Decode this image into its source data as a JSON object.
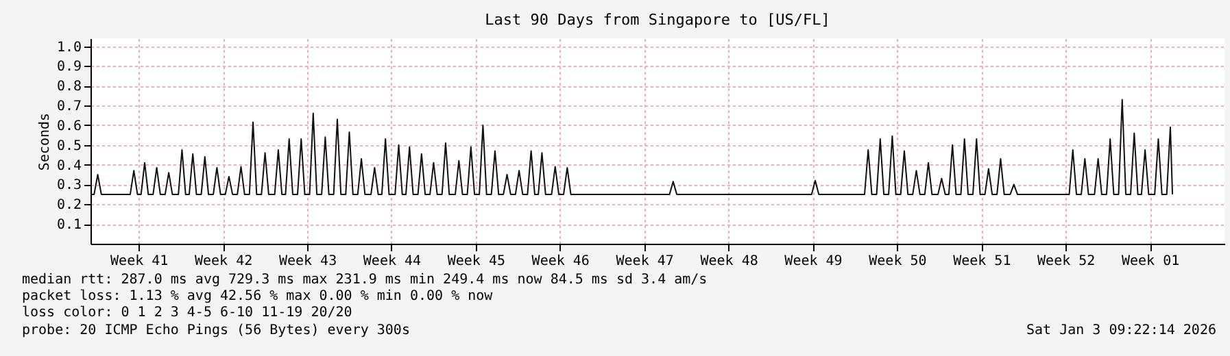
{
  "chart_data": {
    "type": "line",
    "title": "Last 90 Days from Singapore to [US/FL]",
    "ylabel": "Seconds",
    "xlim": [
      "2025-10-05T12:00",
      "2026-01-07T16:48"
    ],
    "ylim": [
      0,
      1.04
    ],
    "xticks": [
      {
        "value": "2025-10-09T12:00",
        "label": "Week 41"
      },
      {
        "value": "2025-10-16T12:00",
        "label": "Week 42"
      },
      {
        "value": "2025-10-23T12:00",
        "label": "Week 43"
      },
      {
        "value": "2025-10-30T12:00",
        "label": "Week 44"
      },
      {
        "value": "2025-11-06T12:00",
        "label": "Week 45"
      },
      {
        "value": "2025-11-13T12:00",
        "label": "Week 46"
      },
      {
        "value": "2025-11-20T12:00",
        "label": "Week 47"
      },
      {
        "value": "2025-11-27T12:00",
        "label": "Week 48"
      },
      {
        "value": "2025-12-04T12:00",
        "label": "Week 49"
      },
      {
        "value": "2025-12-11T12:00",
        "label": "Week 50"
      },
      {
        "value": "2025-12-18T12:00",
        "label": "Week 51"
      },
      {
        "value": "2025-12-25T12:00",
        "label": "Week 52"
      },
      {
        "value": "2026-01-01T12:00",
        "label": "Week 01"
      }
    ],
    "yticks": [
      0.1,
      0.2,
      0.3,
      0.4,
      0.5,
      0.6,
      0.7,
      0.8,
      0.9,
      {
        "value": 1,
        "label": "1.0"
      }
    ],
    "grid": true,
    "marker": "none",
    "line_style": "solid",
    "series": [
      {
        "color": "#111111",
        "x": [
          "2025-10-05T12:00",
          "2025-10-05T19:12",
          "2025-10-06T02:24",
          "2025-10-06T09:36",
          "2025-10-08T19:12",
          "2025-10-09T02:24",
          "2025-10-09T09:36",
          "2025-10-09T16:48",
          "2025-10-10T00:00",
          "2025-10-10T07:12",
          "2025-10-10T16:48",
          "2025-10-11T00:00",
          "2025-10-11T07:12",
          "2025-10-11T16:48",
          "2025-10-12T00:00",
          "2025-10-12T07:12",
          "2025-10-12T19:12",
          "2025-10-13T02:24",
          "2025-10-13T09:36",
          "2025-10-13T16:48",
          "2025-10-14T00:00",
          "2025-10-14T07:12",
          "2025-10-14T16:48",
          "2025-10-15T00:00",
          "2025-10-15T07:12",
          "2025-10-15T16:48",
          "2025-10-16T00:00",
          "2025-10-16T07:12",
          "2025-10-16T16:48",
          "2025-10-17T00:00",
          "2025-10-17T07:12",
          "2025-10-17T16:48",
          "2025-10-18T00:00",
          "2025-10-18T07:12",
          "2025-10-18T16:48",
          "2025-10-19T00:00",
          "2025-10-19T07:12",
          "2025-10-19T16:48",
          "2025-10-20T00:00",
          "2025-10-20T07:12",
          "2025-10-20T19:12",
          "2025-10-21T02:24",
          "2025-10-21T09:36",
          "2025-10-21T16:48",
          "2025-10-22T00:00",
          "2025-10-22T07:12",
          "2025-10-22T16:48",
          "2025-10-23T00:00",
          "2025-10-23T07:12",
          "2025-10-23T16:48",
          "2025-10-24T00:00",
          "2025-10-24T07:12",
          "2025-10-24T16:48",
          "2025-10-25T00:00",
          "2025-10-25T07:12",
          "2025-10-25T16:48",
          "2025-10-26T00:00",
          "2025-10-26T07:12",
          "2025-10-26T16:48",
          "2025-10-27T00:00",
          "2025-10-27T07:12",
          "2025-10-27T16:48",
          "2025-10-28T00:00",
          "2025-10-28T07:12",
          "2025-10-28T19:12",
          "2025-10-29T02:24",
          "2025-10-29T09:36",
          "2025-10-29T16:48",
          "2025-10-30T00:00",
          "2025-10-30T07:12",
          "2025-10-30T19:12",
          "2025-10-31T02:24",
          "2025-10-31T09:36",
          "2025-10-31T16:48",
          "2025-11-01T00:00",
          "2025-11-01T07:12",
          "2025-11-01T16:48",
          "2025-11-02T00:00",
          "2025-11-02T07:12",
          "2025-11-02T16:48",
          "2025-11-03T00:00",
          "2025-11-03T07:12",
          "2025-11-03T16:48",
          "2025-11-04T00:00",
          "2025-11-04T07:12",
          "2025-11-04T19:12",
          "2025-11-05T02:24",
          "2025-11-05T09:36",
          "2025-11-05T19:12",
          "2025-11-06T02:24",
          "2025-11-06T09:36",
          "2025-11-06T19:12",
          "2025-11-07T02:24",
          "2025-11-07T09:36",
          "2025-11-07T19:12",
          "2025-11-08T02:24",
          "2025-11-08T09:36",
          "2025-11-08T19:12",
          "2025-11-09T02:24",
          "2025-11-09T09:36",
          "2025-11-09T19:12",
          "2025-11-10T02:24",
          "2025-11-10T09:36",
          "2025-11-10T19:12",
          "2025-11-11T02:24",
          "2025-11-11T09:36",
          "2025-11-11T16:48",
          "2025-11-12T00:00",
          "2025-11-12T07:12",
          "2025-11-12T19:12",
          "2025-11-13T02:24",
          "2025-11-13T09:36",
          "2025-11-13T19:12",
          "2025-11-14T02:24",
          "2025-11-14T09:36",
          "2025-11-22T14:24",
          "2025-11-22T21:36",
          "2025-11-23T04:48",
          "2025-12-04T09:36",
          "2025-12-04T16:48",
          "2025-12-05T00:00",
          "2025-12-08T19:12",
          "2025-12-09T02:24",
          "2025-12-09T09:36",
          "2025-12-09T19:12",
          "2025-12-10T02:24",
          "2025-12-10T09:36",
          "2025-12-10T19:12",
          "2025-12-11T02:24",
          "2025-12-11T09:36",
          "2025-12-11T19:12",
          "2025-12-12T02:24",
          "2025-12-12T09:36",
          "2025-12-12T19:12",
          "2025-12-13T02:24",
          "2025-12-13T09:36",
          "2025-12-13T19:12",
          "2025-12-14T02:24",
          "2025-12-14T09:36",
          "2025-12-14T21:36",
          "2025-12-15T04:48",
          "2025-12-15T12:00",
          "2025-12-15T19:12",
          "2025-12-16T02:24",
          "2025-12-16T09:36",
          "2025-12-16T19:12",
          "2025-12-17T02:24",
          "2025-12-17T09:36",
          "2025-12-17T19:12",
          "2025-12-18T02:24",
          "2025-12-18T09:36",
          "2025-12-18T19:12",
          "2025-12-19T02:24",
          "2025-12-19T09:36",
          "2025-12-19T19:12",
          "2025-12-20T02:24",
          "2025-12-20T09:36",
          "2025-12-20T21:36",
          "2025-12-21T04:48",
          "2025-12-21T12:00",
          "2025-12-25T19:12",
          "2025-12-26T02:24",
          "2025-12-26T09:36",
          "2025-12-26T19:12",
          "2025-12-27T02:24",
          "2025-12-27T09:36",
          "2025-12-27T21:36",
          "2025-12-28T04:48",
          "2025-12-28T12:00",
          "2025-12-28T21:36",
          "2025-12-29T04:48",
          "2025-12-29T12:00",
          "2025-12-29T21:36",
          "2025-12-30T04:48",
          "2025-12-30T12:00",
          "2025-12-30T21:36",
          "2025-12-31T04:48",
          "2025-12-31T12:00",
          "2025-12-31T19:12",
          "2026-01-01T02:24",
          "2026-01-01T09:36",
          "2026-01-01T21:36",
          "2026-01-02T04:48",
          "2026-01-02T12:00",
          "2026-01-02T21:36",
          "2026-01-03T04:48",
          "2026-01-03T09:00"
        ],
        "values": [
          0.25,
          0.25,
          0.35,
          0.25,
          0.25,
          0.37,
          0.25,
          0.25,
          0.41,
          0.25,
          0.25,
          0.385,
          0.25,
          0.25,
          0.36,
          0.25,
          0.25,
          0.475,
          0.25,
          0.25,
          0.455,
          0.25,
          0.25,
          0.44,
          0.25,
          0.25,
          0.385,
          0.25,
          0.25,
          0.34,
          0.25,
          0.25,
          0.39,
          0.25,
          0.25,
          0.615,
          0.25,
          0.25,
          0.46,
          0.25,
          0.25,
          0.475,
          0.25,
          0.25,
          0.53,
          0.25,
          0.25,
          0.53,
          0.25,
          0.25,
          0.66,
          0.25,
          0.25,
          0.54,
          0.25,
          0.25,
          0.63,
          0.25,
          0.25,
          0.565,
          0.25,
          0.25,
          0.43,
          0.25,
          0.25,
          0.385,
          0.25,
          0.25,
          0.53,
          0.25,
          0.25,
          0.5,
          0.25,
          0.25,
          0.49,
          0.25,
          0.25,
          0.455,
          0.25,
          0.25,
          0.41,
          0.25,
          0.25,
          0.51,
          0.25,
          0.25,
          0.42,
          0.25,
          0.25,
          0.49,
          0.25,
          0.25,
          0.6,
          0.25,
          0.25,
          0.47,
          0.25,
          0.25,
          0.35,
          0.25,
          0.25,
          0.37,
          0.25,
          0.25,
          0.47,
          0.25,
          0.25,
          0.46,
          0.25,
          0.25,
          0.39,
          0.25,
          0.25,
          0.385,
          0.25,
          0.25,
          0.315,
          0.25,
          0.25,
          0.32,
          0.25,
          0.25,
          0.475,
          0.25,
          0.25,
          0.53,
          0.25,
          0.25,
          0.545,
          0.25,
          0.25,
          0.47,
          0.25,
          0.25,
          0.37,
          0.25,
          0.25,
          0.41,
          0.25,
          0.25,
          0.33,
          0.25,
          0.25,
          0.5,
          0.25,
          0.25,
          0.53,
          0.25,
          0.25,
          0.53,
          0.25,
          0.25,
          0.38,
          0.25,
          0.25,
          0.43,
          0.25,
          0.25,
          0.3,
          0.25,
          0.25,
          0.475,
          0.25,
          0.25,
          0.43,
          0.25,
          0.25,
          0.43,
          0.25,
          0.25,
          0.53,
          0.25,
          0.25,
          0.73,
          0.25,
          0.25,
          0.56,
          0.25,
          0.25,
          0.475,
          0.25,
          0.25,
          0.53,
          0.25,
          0.25,
          0.59,
          0.25
        ]
      }
    ],
    "annotations": [
      "median rtt:  287.0 ms avg   729.3 ms max   231.9 ms min   249.4 ms now   84.5 ms sd  3.4    am/s",
      "packet loss: 1.13 % avg   42.56 % max   0.00 % min   0.00 % now",
      "loss color:       0   1   2   3   4-5   6-10   11-19   20/20",
      "probe:        20 ICMP Echo Pings (56 Bytes) every 300s",
      "Sat Jan  3 09:22:14 2026"
    ]
  }
}
